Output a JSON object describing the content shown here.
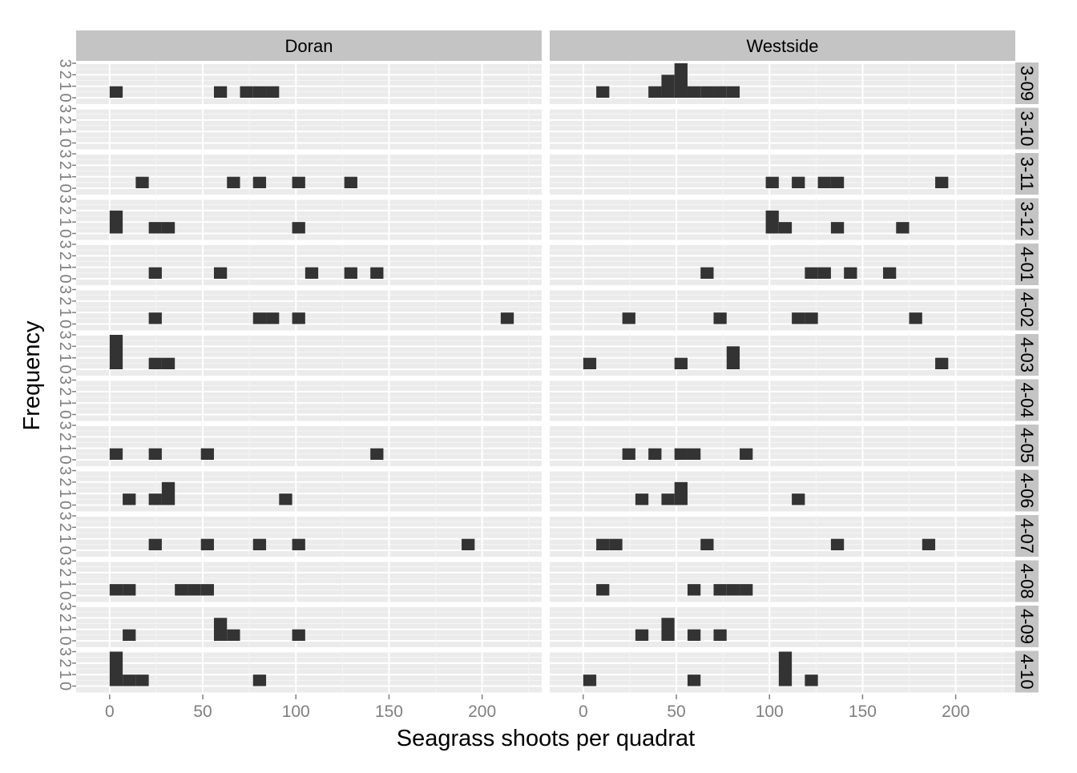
{
  "chart_data": {
    "type": "bar",
    "subtype": "faceted histogram",
    "xlabel": "Seagrass shoots per quadrat",
    "ylabel": "Frequency",
    "binwidth": 7,
    "xlim": [
      -18,
      232
    ],
    "ylim": [
      0,
      3
    ],
    "x_ticks": [
      0,
      50,
      100,
      150,
      200
    ],
    "y_ticks": [
      0,
      1,
      2,
      3
    ],
    "grid": true,
    "columns": [
      "Doran",
      "Westside"
    ],
    "rows": [
      "3-09",
      "3-10",
      "3-11",
      "3-12",
      "4-01",
      "4-02",
      "4-03",
      "4-04",
      "4-05",
      "4-06",
      "4-07",
      "4-08",
      "4-09",
      "4-10"
    ],
    "colors": {
      "panel_bg": "#ebebeb",
      "strip_bg": "#c4c4c4",
      "grid": "#ffffff",
      "bar": "#333333",
      "text": "#000000",
      "tick_text": "#7f7f7f"
    },
    "panels": [
      {
        "site": "Doran",
        "date": "3-09",
        "bins": [
          [
            3.5,
            1
          ],
          [
            59.5,
            1
          ],
          [
            73.5,
            1
          ],
          [
            80.5,
            1
          ],
          [
            87.5,
            1
          ]
        ]
      },
      {
        "site": "Westside",
        "date": "3-09",
        "bins": [
          [
            10.5,
            1
          ],
          [
            38.5,
            1
          ],
          [
            45.5,
            2
          ],
          [
            52.5,
            3
          ],
          [
            59.5,
            1
          ],
          [
            66.5,
            1
          ],
          [
            73.5,
            1
          ],
          [
            80.5,
            1
          ]
        ]
      },
      {
        "site": "Doran",
        "date": "3-10",
        "bins": []
      },
      {
        "site": "Westside",
        "date": "3-10",
        "bins": []
      },
      {
        "site": "Doran",
        "date": "3-11",
        "bins": [
          [
            17.5,
            1
          ],
          [
            66.5,
            1
          ],
          [
            80.5,
            1
          ],
          [
            101.5,
            1
          ],
          [
            129.5,
            1
          ]
        ]
      },
      {
        "site": "Westside",
        "date": "3-11",
        "bins": [
          [
            101.5,
            1
          ],
          [
            115.5,
            1
          ],
          [
            129.5,
            1
          ],
          [
            136.5,
            1
          ],
          [
            192.5,
            1
          ]
        ]
      },
      {
        "site": "Doran",
        "date": "3-12",
        "bins": [
          [
            3.5,
            2
          ],
          [
            24.5,
            1
          ],
          [
            31.5,
            1
          ],
          [
            101.5,
            1
          ]
        ]
      },
      {
        "site": "Westside",
        "date": "3-12",
        "bins": [
          [
            101.5,
            2
          ],
          [
            108.5,
            1
          ],
          [
            136.5,
            1
          ],
          [
            171.5,
            1
          ]
        ]
      },
      {
        "site": "Doran",
        "date": "4-01",
        "bins": [
          [
            24.5,
            1
          ],
          [
            59.5,
            1
          ],
          [
            108.5,
            1
          ],
          [
            129.5,
            1
          ],
          [
            143.5,
            1
          ]
        ]
      },
      {
        "site": "Westside",
        "date": "4-01",
        "bins": [
          [
            66.5,
            1
          ],
          [
            122.5,
            1
          ],
          [
            129.5,
            1
          ],
          [
            143.5,
            1
          ],
          [
            164.5,
            1
          ]
        ]
      },
      {
        "site": "Doran",
        "date": "4-02",
        "bins": [
          [
            24.5,
            1
          ],
          [
            80.5,
            1
          ],
          [
            87.5,
            1
          ],
          [
            101.5,
            1
          ],
          [
            213.5,
            1
          ]
        ]
      },
      {
        "site": "Westside",
        "date": "4-02",
        "bins": [
          [
            24.5,
            1
          ],
          [
            73.5,
            1
          ],
          [
            115.5,
            1
          ],
          [
            122.5,
            1
          ],
          [
            178.5,
            1
          ]
        ]
      },
      {
        "site": "Doran",
        "date": "4-03",
        "bins": [
          [
            3.5,
            3
          ],
          [
            24.5,
            1
          ],
          [
            31.5,
            1
          ]
        ]
      },
      {
        "site": "Westside",
        "date": "4-03",
        "bins": [
          [
            3.5,
            1
          ],
          [
            52.5,
            1
          ],
          [
            80.5,
            2
          ],
          [
            192.5,
            1
          ]
        ]
      },
      {
        "site": "Doran",
        "date": "4-04",
        "bins": []
      },
      {
        "site": "Westside",
        "date": "4-04",
        "bins": []
      },
      {
        "site": "Doran",
        "date": "4-05",
        "bins": [
          [
            3.5,
            1
          ],
          [
            24.5,
            1
          ],
          [
            52.5,
            1
          ],
          [
            143.5,
            1
          ]
        ]
      },
      {
        "site": "Westside",
        "date": "4-05",
        "bins": [
          [
            24.5,
            1
          ],
          [
            38.5,
            1
          ],
          [
            52.5,
            1
          ],
          [
            59.5,
            1
          ],
          [
            87.5,
            1
          ]
        ]
      },
      {
        "site": "Doran",
        "date": "4-06",
        "bins": [
          [
            10.5,
            1
          ],
          [
            24.5,
            1
          ],
          [
            31.5,
            2
          ],
          [
            94.5,
            1
          ]
        ]
      },
      {
        "site": "Westside",
        "date": "4-06",
        "bins": [
          [
            31.5,
            1
          ],
          [
            45.5,
            1
          ],
          [
            52.5,
            2
          ],
          [
            115.5,
            1
          ]
        ]
      },
      {
        "site": "Doran",
        "date": "4-07",
        "bins": [
          [
            24.5,
            1
          ],
          [
            52.5,
            1
          ],
          [
            80.5,
            1
          ],
          [
            101.5,
            1
          ],
          [
            192.5,
            1
          ]
        ]
      },
      {
        "site": "Westside",
        "date": "4-07",
        "bins": [
          [
            10.5,
            1
          ],
          [
            17.5,
            1
          ],
          [
            66.5,
            1
          ],
          [
            136.5,
            1
          ],
          [
            185.5,
            1
          ]
        ]
      },
      {
        "site": "Doran",
        "date": "4-08",
        "bins": [
          [
            3.5,
            1
          ],
          [
            10.5,
            1
          ],
          [
            38.5,
            1
          ],
          [
            45.5,
            1
          ],
          [
            52.5,
            1
          ]
        ]
      },
      {
        "site": "Westside",
        "date": "4-08",
        "bins": [
          [
            10.5,
            1
          ],
          [
            59.5,
            1
          ],
          [
            73.5,
            1
          ],
          [
            80.5,
            1
          ],
          [
            87.5,
            1
          ]
        ]
      },
      {
        "site": "Doran",
        "date": "4-09",
        "bins": [
          [
            10.5,
            1
          ],
          [
            59.5,
            2
          ],
          [
            66.5,
            1
          ],
          [
            101.5,
            1
          ]
        ]
      },
      {
        "site": "Westside",
        "date": "4-09",
        "bins": [
          [
            31.5,
            1
          ],
          [
            45.5,
            2
          ],
          [
            59.5,
            1
          ],
          [
            73.5,
            1
          ]
        ]
      },
      {
        "site": "Doran",
        "date": "4-10",
        "bins": [
          [
            3.5,
            3
          ],
          [
            10.5,
            1
          ],
          [
            17.5,
            1
          ],
          [
            80.5,
            1
          ]
        ]
      },
      {
        "site": "Westside",
        "date": "4-10",
        "bins": [
          [
            3.5,
            1
          ],
          [
            59.5,
            1
          ],
          [
            108.5,
            3
          ],
          [
            122.5,
            1
          ]
        ]
      }
    ]
  }
}
